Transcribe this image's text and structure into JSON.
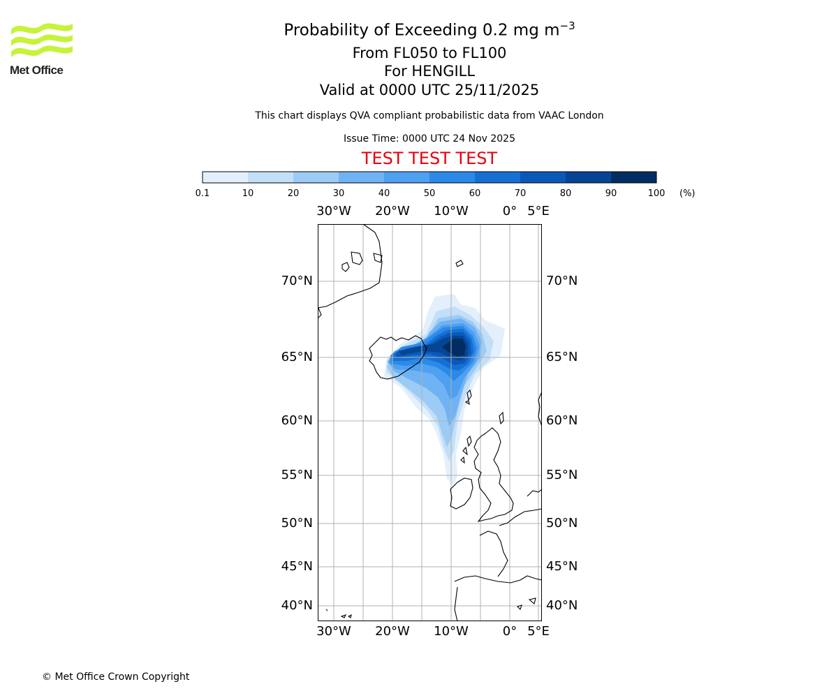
{
  "logo": {
    "name": "Met Office",
    "brand_color": "#c7f23a"
  },
  "title": {
    "main_prefix": "Probability of Exceeding 0.2 mg m",
    "main_superscript": "−3",
    "levels": "From FL050 to FL100",
    "location": "For HENGILL",
    "valid": "Valid at 0000 UTC 25/11/2025"
  },
  "subtitle": "This chart displays QVA compliant probabilistic data from VAAC London",
  "issue_time": "Issue Time: 0000 UTC 24 Nov 2025",
  "test_banner": "TEST TEST TEST",
  "colorbar": {
    "ticks": [
      "0.1",
      "10",
      "20",
      "30",
      "40",
      "50",
      "60",
      "70",
      "80",
      "90",
      "100"
    ],
    "colors": [
      "#e3f0fb",
      "#c3dff8",
      "#9ccbf6",
      "#70b3f4",
      "#4ea0f0",
      "#2b89e8",
      "#1670d4",
      "#0a59b8",
      "#064594",
      "#022d62"
    ],
    "unit": "(%)"
  },
  "map": {
    "lon_labels": [
      "30°W",
      "20°W",
      "10°W",
      "0°",
      "5°E"
    ],
    "lat_labels": [
      "70°N",
      "65°N",
      "60°N",
      "55°N",
      "50°N",
      "45°N",
      "40°N"
    ]
  },
  "chart_data": {
    "type": "heatmap",
    "title": "Probability of Exceeding 0.2 mg m−3 From FL050 to FL100 For HENGILL Valid at 0000 UTC 25/11/2025",
    "units": "%",
    "levels": [
      0.1,
      10,
      20,
      30,
      40,
      50,
      60,
      70,
      80,
      90,
      100
    ],
    "lon_range": [
      -33,
      6
    ],
    "lat_range": [
      39,
      74
    ],
    "lon_ticks": [
      -30,
      -20,
      -10,
      0,
      5
    ],
    "lat_ticks": [
      70,
      65,
      60,
      55,
      50,
      45,
      40
    ],
    "probability_regions": [
      {
        "lat": 65.5,
        "lon": -9.5,
        "max_percent": 100,
        "extent": "core north-east of Iceland"
      },
      {
        "lat": 64.8,
        "lon": -20,
        "max_percent": 90,
        "extent": "over southern Iceland"
      },
      {
        "lat": 62.5,
        "lon": -11,
        "max_percent": 60,
        "extent": "tail toward Faroe Islands"
      },
      {
        "lat": 57.5,
        "lon": -9.5,
        "max_percent": 30,
        "extent": "tail toward Scotland/Ireland"
      }
    ]
  },
  "copyright": "© Met Office Crown Copyright"
}
